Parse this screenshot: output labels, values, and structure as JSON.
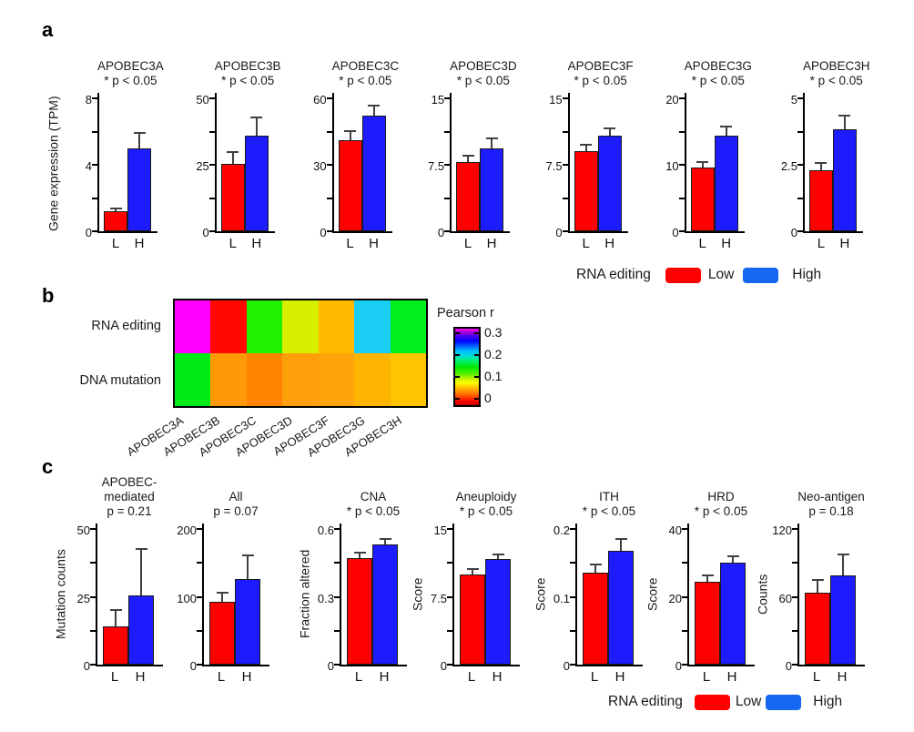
{
  "figure_labels": {
    "a": "a",
    "b": "b",
    "c": "c"
  },
  "legend_a": {
    "title": "RNA editing",
    "low_label": "Low",
    "high_label": "High",
    "low_color": "#fe0000",
    "high_color": "#1668f0"
  },
  "legend_c": {
    "title": "RNA editing",
    "low_label": "Low",
    "high_label": "High",
    "low_color": "#fe0000",
    "high_color": "#1668f0"
  },
  "chart_data": [
    {
      "panel": "a",
      "type": "bar",
      "ylabel": "Gene expression (TPM)",
      "categories": [
        "L",
        "H"
      ],
      "bar_colors": {
        "L": "#ff0000",
        "H": "#1c1cff"
      },
      "legend": {
        "title": "RNA editing",
        "entries": [
          {
            "label": "Low",
            "color": "#fe0000"
          },
          {
            "label": "High",
            "color": "#1668f0"
          }
        ]
      },
      "charts": [
        {
          "title_lines": [
            "APOBEC3A",
            "* p < 0.05"
          ],
          "ymax": 8,
          "yticks": [
            0,
            4,
            8
          ],
          "values": {
            "L": 1.2,
            "H": 5.0
          },
          "errors": {
            "L": 0.25,
            "H": 1.0
          }
        },
        {
          "title_lines": [
            "APOBEC3B",
            "* p < 0.05"
          ],
          "ymax": 50,
          "yticks": [
            0,
            25,
            50
          ],
          "values": {
            "L": 25.5,
            "H": 36
          },
          "errors": {
            "L": 4.5,
            "H": 7
          }
        },
        {
          "title_lines": [
            "APOBEC3C",
            "* p < 0.05"
          ],
          "ymax": 60,
          "yticks": [
            0,
            30,
            60
          ],
          "values": {
            "L": 41,
            "H": 52
          },
          "errors": {
            "L": 4.5,
            "H": 5
          }
        },
        {
          "title_lines": [
            "APOBEC3D",
            "* p < 0.05"
          ],
          "ymax": 15,
          "yticks": [
            0,
            7.5,
            15
          ],
          "values": {
            "L": 7.8,
            "H": 9.3
          },
          "errors": {
            "L": 0.8,
            "H": 1.3
          }
        },
        {
          "title_lines": [
            "APOBEC3F",
            "* p < 0.05"
          ],
          "ymax": 15,
          "yticks": [
            0,
            7.5,
            15
          ],
          "values": {
            "L": 9.0,
            "H": 10.8
          },
          "errors": {
            "L": 0.9,
            "H": 0.9
          }
        },
        {
          "title_lines": [
            "APOBEC3G",
            "* p < 0.05"
          ],
          "ymax": 20,
          "yticks": [
            0,
            10,
            20
          ],
          "values": {
            "L": 9.6,
            "H": 14.4
          },
          "errors": {
            "L": 1.0,
            "H": 1.5
          }
        },
        {
          "title_lines": [
            "APOBEC3H",
            "* p < 0.05"
          ],
          "ymax": 5,
          "yticks": [
            0,
            2.5,
            5
          ],
          "values": {
            "L": 2.3,
            "H": 3.85
          },
          "errors": {
            "L": 0.3,
            "H": 0.55
          }
        }
      ]
    },
    {
      "panel": "b",
      "type": "heatmap",
      "columns": [
        "APOBEC3A",
        "APOBEC3B",
        "APOBEC3C",
        "APOBEC3D",
        "APOBEC3F",
        "APOBEC3G",
        "APOBEC3H"
      ],
      "rows": [
        {
          "label": "RNA editing",
          "values": [
            0.32,
            0.01,
            0.13,
            0.08,
            0.05,
            0.2,
            0.12
          ],
          "colors": [
            "#ff00ff",
            "#ff0800",
            "#1ef200",
            "#d6f000",
            "#ffbb00",
            "#19cef2",
            "#00f01e"
          ]
        },
        {
          "label": "DNA mutation",
          "values": [
            0.13,
            0.04,
            0.03,
            0.04,
            0.04,
            0.05,
            0.06
          ],
          "colors": [
            "#00ec14",
            "#ff9a06",
            "#ff8400",
            "#ffa00a",
            "#ffa40a",
            "#ffb400",
            "#ffc300"
          ]
        }
      ],
      "colorbar": {
        "title": "Pearson r",
        "tick_labels": [
          "0.3",
          "0.2",
          "0.1",
          "0"
        ]
      }
    },
    {
      "panel": "c",
      "type": "bar",
      "categories": [
        "L",
        "H"
      ],
      "bar_colors": {
        "L": "#ff0000",
        "H": "#1c1cff"
      },
      "legend": {
        "title": "RNA editing",
        "entries": [
          {
            "label": "Low",
            "color": "#fe0000"
          },
          {
            "label": "High",
            "color": "#1668f0"
          }
        ]
      },
      "charts": [
        {
          "title_lines": [
            "APOBEC-",
            "mediated",
            "p = 0.21"
          ],
          "ylabel": "Mutation counts",
          "ymax": 50,
          "yticks": [
            0,
            25,
            50
          ],
          "values": {
            "L": 14,
            "H": 25.5
          },
          "errors": {
            "L": 6.5,
            "H": 17.5
          }
        },
        {
          "title_lines": [
            "All",
            "p = 0.07"
          ],
          "ylabel": "",
          "ymax": 200,
          "yticks": [
            0,
            100,
            200
          ],
          "values": {
            "L": 92,
            "H": 126
          },
          "errors": {
            "L": 16,
            "H": 37
          }
        },
        {
          "title_lines": [
            "CNA",
            "* p < 0.05"
          ],
          "ylabel": "Fraction altered",
          "ymax": 0.6,
          "yticks": [
            0,
            0.3,
            0.6
          ],
          "values": {
            "L": 0.47,
            "H": 0.53
          },
          "errors": {
            "L": 0.03,
            "H": 0.03
          }
        },
        {
          "title_lines": [
            "Aneuploidy",
            "* p < 0.05"
          ],
          "ylabel": "Score",
          "ymax": 15,
          "yticks": [
            0,
            7.5,
            15
          ],
          "values": {
            "L": 10.0,
            "H": 11.7
          },
          "errors": {
            "L": 0.7,
            "H": 0.6
          }
        },
        {
          "title_lines": [
            "ITH",
            "* p < 0.05"
          ],
          "ylabel": "Score",
          "ymax": 0.2,
          "yticks": [
            0,
            0.1,
            0.2
          ],
          "values": {
            "L": 0.135,
            "H": 0.168
          },
          "errors": {
            "L": 0.014,
            "H": 0.018
          }
        },
        {
          "title_lines": [
            "HRD",
            "* p < 0.05"
          ],
          "ylabel": "Score",
          "ymax": 40,
          "yticks": [
            0,
            20,
            40
          ],
          "values": {
            "L": 24.5,
            "H": 30
          },
          "errors": {
            "L": 2.1,
            "H": 2.3
          }
        },
        {
          "title_lines": [
            "Neo-antigen",
            "p = 0.18"
          ],
          "ylabel": "Counts",
          "ymax": 120,
          "yticks": [
            0,
            60,
            120
          ],
          "values": {
            "L": 64,
            "H": 79
          },
          "errors": {
            "L": 12,
            "H": 19
          }
        }
      ]
    }
  ]
}
